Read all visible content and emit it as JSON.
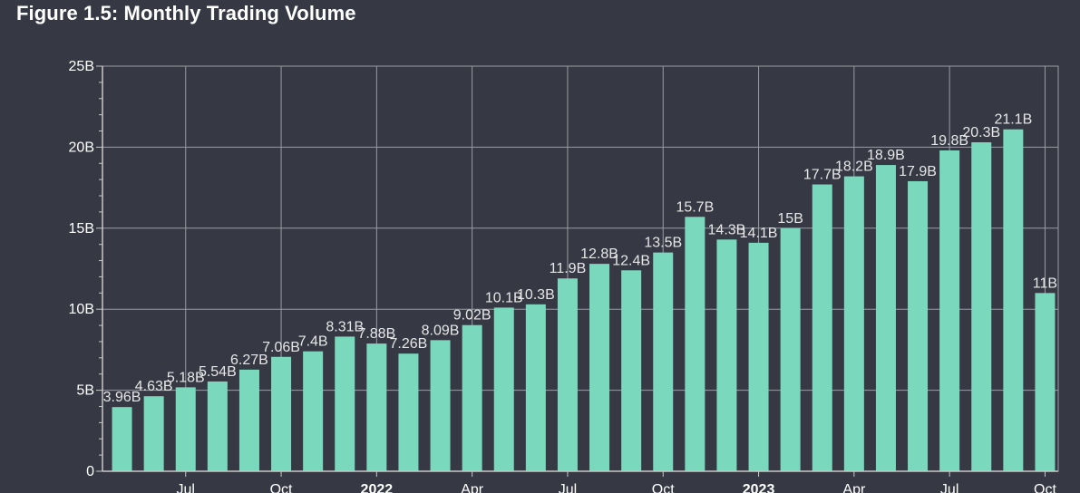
{
  "chart_data": {
    "type": "bar",
    "title": "Figure 1.5: Monthly Trading Volume",
    "xlabel": "",
    "ylabel": "",
    "ylim": [
      0,
      25
    ],
    "y_unit_suffix": "B",
    "grid": true,
    "y_ticks": [
      {
        "value": 0,
        "label": "0"
      },
      {
        "value": 5,
        "label": "5B"
      },
      {
        "value": 10,
        "label": "10B"
      },
      {
        "value": 15,
        "label": "15B"
      },
      {
        "value": 20,
        "label": "20B"
      },
      {
        "value": 25,
        "label": "25B"
      }
    ],
    "x_ticks": [
      {
        "index": 2,
        "label": "Jul",
        "bold": false
      },
      {
        "index": 5,
        "label": "Oct",
        "bold": false
      },
      {
        "index": 8,
        "label": "2022",
        "bold": true
      },
      {
        "index": 11,
        "label": "Apr",
        "bold": false
      },
      {
        "index": 14,
        "label": "Jul",
        "bold": false
      },
      {
        "index": 17,
        "label": "Oct",
        "bold": false
      },
      {
        "index": 20,
        "label": "2023",
        "bold": true
      },
      {
        "index": 23,
        "label": "Apr",
        "bold": false
      },
      {
        "index": 26,
        "label": "Jul",
        "bold": false
      },
      {
        "index": 29,
        "label": "Oct",
        "bold": false
      }
    ],
    "series": [
      {
        "name": "Monthly Trading Volume",
        "color": "#7ad9bd",
        "values": [
          3.96,
          4.63,
          5.18,
          5.54,
          6.27,
          7.06,
          7.4,
          8.31,
          7.88,
          7.26,
          8.09,
          9.02,
          10.1,
          10.3,
          11.9,
          12.8,
          12.4,
          13.5,
          15.7,
          14.3,
          14.1,
          15,
          17.7,
          18.2,
          18.9,
          17.9,
          19.8,
          20.3,
          21.1,
          11
        ],
        "labels": [
          "3.96B",
          "4.63B",
          "5.18B",
          "5.54B",
          "6.27B",
          "7.06B",
          "7.4B",
          "8.31B",
          "7.88B",
          "7.26B",
          "8.09B",
          "9.02B",
          "10.1B",
          "10.3B",
          "11.9B",
          "12.8B",
          "12.4B",
          "13.5B",
          "15.7B",
          "14.3B",
          "14.1B",
          "15B",
          "17.7B",
          "18.2B",
          "18.9B",
          "17.9B",
          "19.8B",
          "20.3B",
          "21.1B",
          "11B"
        ]
      }
    ]
  },
  "colors": {
    "background": "#363944",
    "bar": "#7ad9bd",
    "grid": "#9a9ca4",
    "axis": "#c8c8c8",
    "text": "#ffffff"
  }
}
